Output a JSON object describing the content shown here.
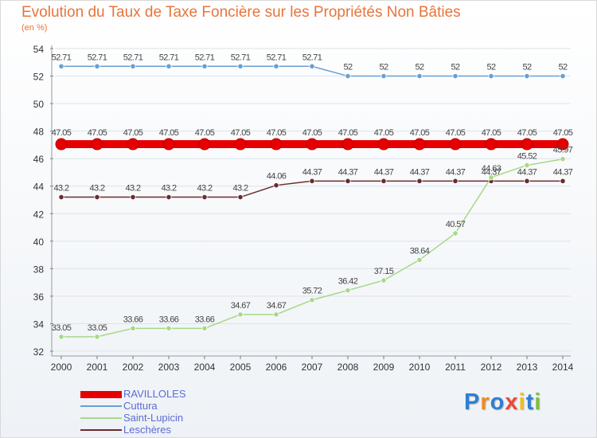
{
  "chart_data": {
    "type": "line",
    "title": "Evolution du Taux de Taxe Foncière sur les Propriétés Non Bâties",
    "ylabel": "(en %)",
    "xlabel": "",
    "ylim": [
      32,
      54
    ],
    "yticks": [
      32,
      34,
      36,
      38,
      40,
      42,
      44,
      46,
      48,
      50,
      52,
      54
    ],
    "categories": [
      "2000",
      "2001",
      "2002",
      "2003",
      "2004",
      "2005",
      "2006",
      "2007",
      "2008",
      "2009",
      "2010",
      "2011",
      "2012",
      "2013",
      "2014"
    ],
    "series": [
      {
        "name": "Cuttura",
        "color": "#6a9fd0",
        "values": [
          52.71,
          52.71,
          52.71,
          52.71,
          52.71,
          52.71,
          52.71,
          52.71,
          52,
          52,
          52,
          52,
          52,
          52,
          52
        ],
        "labels": [
          "52.71",
          "52.71",
          "52.71",
          "52.71",
          "52.71",
          "52.71",
          "52.71",
          "52.71",
          "52",
          "52",
          "52",
          "52",
          "52",
          "52",
          "52"
        ]
      },
      {
        "name": "RAVILLOLES",
        "color": "#e60000",
        "values": [
          47.05,
          47.05,
          47.05,
          47.05,
          47.05,
          47.05,
          47.05,
          47.05,
          47.05,
          47.05,
          47.05,
          47.05,
          47.05,
          47.05,
          47.05
        ],
        "labels": [
          "47.05",
          "47.05",
          "47.05",
          "47.05",
          "47.05",
          "47.05",
          "47.05",
          "47.05",
          "47.05",
          "47.05",
          "47.05",
          "47.05",
          "47.05",
          "47.05",
          "47.05"
        ]
      },
      {
        "name": "Leschères",
        "color": "#6b2b2e",
        "values": [
          43.2,
          43.2,
          43.2,
          43.2,
          43.2,
          43.2,
          44.06,
          44.37,
          44.37,
          44.37,
          44.37,
          44.37,
          44.37,
          44.37,
          44.37
        ],
        "labels": [
          "43.2",
          "43.2",
          "43.2",
          "43.2",
          "43.2",
          "43.2",
          "44.06",
          "44.37",
          "44.37",
          "44.37",
          "44.37",
          "44.37",
          "44.37",
          "44.37",
          "44.37"
        ]
      },
      {
        "name": "Saint-Lupicin",
        "color": "#a8d888",
        "values": [
          33.05,
          33.05,
          33.66,
          33.66,
          33.66,
          34.67,
          34.67,
          35.72,
          36.42,
          37.15,
          38.64,
          40.57,
          44.63,
          45.52,
          45.97
        ],
        "labels": [
          "33.05",
          "33.05",
          "33.66",
          "33.66",
          "33.66",
          "34.67",
          "34.67",
          "35.72",
          "36.42",
          "37.15",
          "38.64",
          "40.57",
          "44.63",
          "45.52",
          "45.97"
        ]
      }
    ],
    "legend": {
      "position": "bottom-left",
      "order": [
        "RAVILLOLES",
        "Cuttura",
        "Saint-Lupicin",
        "Leschères"
      ]
    }
  },
  "legend_items": [
    {
      "label": "RAVILLOLES",
      "color": "#e60000"
    },
    {
      "label": "Cuttura",
      "color": "#6a9fd0"
    },
    {
      "label": "Saint-Lupicin",
      "color": "#a8d888"
    },
    {
      "label": "Leschères",
      "color": "#6b2b2e"
    }
  ],
  "logo": {
    "text": "Proxiti",
    "letters": [
      "P",
      "r",
      "o",
      "x",
      "i",
      "t",
      "i"
    ],
    "colors": [
      "#2f7fd1",
      "#f08a24",
      "#2f7fd1",
      "#e84b3a",
      "#f0c020",
      "#2f7fd1",
      "#7fbf3f"
    ]
  }
}
